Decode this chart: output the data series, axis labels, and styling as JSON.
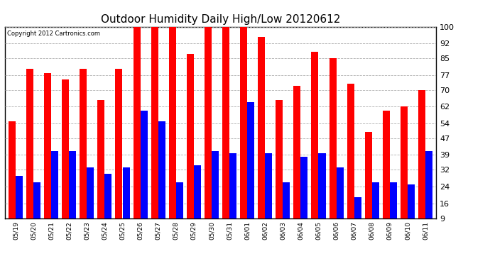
{
  "title": "Outdoor Humidity Daily High/Low 20120612",
  "copyright": "Copyright 2012 Cartronics.com",
  "dates": [
    "05/19",
    "05/20",
    "05/21",
    "05/22",
    "05/23",
    "05/24",
    "05/25",
    "05/26",
    "05/27",
    "05/28",
    "05/29",
    "05/30",
    "05/31",
    "06/01",
    "06/02",
    "06/03",
    "06/04",
    "06/05",
    "06/06",
    "06/07",
    "06/08",
    "06/09",
    "06/10",
    "06/11"
  ],
  "highs": [
    55,
    80,
    78,
    75,
    80,
    65,
    80,
    100,
    100,
    100,
    87,
    100,
    100,
    100,
    95,
    65,
    72,
    88,
    85,
    73,
    50,
    60,
    62,
    70
  ],
  "lows": [
    29,
    26,
    41,
    41,
    33,
    30,
    33,
    60,
    55,
    26,
    34,
    41,
    40,
    64,
    40,
    26,
    38,
    40,
    33,
    19,
    26,
    26,
    25,
    41
  ],
  "bar_color_high": "#ff0000",
  "bar_color_low": "#0000ff",
  "bg_color": "#ffffff",
  "plot_bg_color": "#ffffff",
  "grid_color": "#b0b0b0",
  "yticks": [
    9,
    16,
    24,
    32,
    39,
    47,
    54,
    62,
    70,
    77,
    85,
    92,
    100
  ],
  "ymin": 9,
  "ymax": 100,
  "title_fontsize": 11,
  "copyright_fontsize": 6,
  "xlabel_fontsize": 6.5,
  "ylabel_fontsize": 8,
  "bar_width": 0.4
}
